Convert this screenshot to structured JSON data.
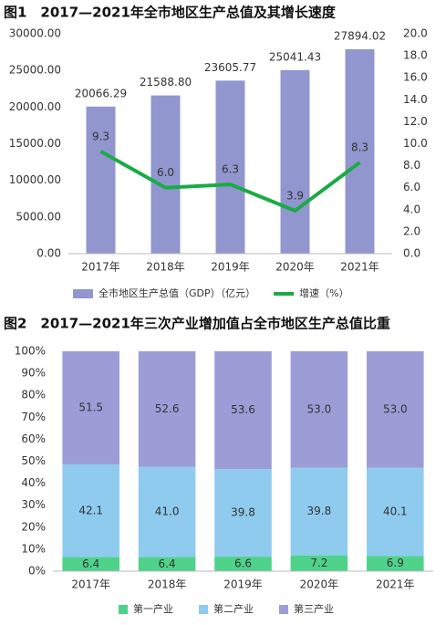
{
  "chart_data": [
    {
      "type": "combo",
      "title": "图1　2017—2021年全市地区生产总值及其增长速度",
      "categories": [
        "2017年",
        "2018年",
        "2019年",
        "2020年",
        "2021年"
      ],
      "series": [
        {
          "name": "全市地区生产总值（GDP）（亿元）",
          "type": "bar",
          "color": "#9196cf",
          "values": [
            20066.29,
            21588.8,
            23605.77,
            25041.43,
            27894.02
          ],
          "value_labels": [
            "20066.29",
            "21588.80",
            "23605.77",
            "25041.43",
            "27894.02"
          ]
        },
        {
          "name": "增速（%）",
          "type": "line",
          "axis": "y2",
          "color": "#1aab45",
          "values": [
            9.3,
            6.0,
            6.3,
            3.9,
            8.3
          ],
          "value_labels": [
            "9.3",
            "6.0",
            "6.3",
            "3.9",
            "8.3"
          ]
        }
      ],
      "ylim": [
        0,
        30000
      ],
      "yticks": [
        {
          "value": 0,
          "label": "0.00"
        },
        {
          "value": 5000,
          "label": "5000.00"
        },
        {
          "value": 10000,
          "label": "10000.00"
        },
        {
          "value": 15000,
          "label": "15000.00"
        },
        {
          "value": 20000,
          "label": "20000.00"
        },
        {
          "value": 25000,
          "label": "25000.00"
        },
        {
          "value": 30000,
          "label": "30000.00"
        }
      ],
      "y2lim": [
        0,
        20
      ],
      "y2ticks": [
        {
          "value": 0,
          "label": "0.0"
        },
        {
          "value": 2,
          "label": "2.0"
        },
        {
          "value": 4,
          "label": "4.0"
        },
        {
          "value": 6,
          "label": "6.0"
        },
        {
          "value": 8,
          "label": "8.0"
        },
        {
          "value": 10,
          "label": "10.0"
        },
        {
          "value": 12,
          "label": "12.0"
        },
        {
          "value": 14,
          "label": "14.0"
        },
        {
          "value": 16,
          "label": "16.0"
        },
        {
          "value": 18,
          "label": "18.0"
        },
        {
          "value": 20,
          "label": "20.0"
        }
      ]
    },
    {
      "type": "stacked_bar",
      "title": "图2　2017—2021年三次产业增加值占全市地区生产总值比重",
      "categories": [
        "2017年",
        "2018年",
        "2019年",
        "2020年",
        "2021年"
      ],
      "series": [
        {
          "name": "第一产业",
          "color": "#4fd28a",
          "values": [
            6.4,
            6.4,
            6.6,
            7.2,
            6.9
          ],
          "value_labels": [
            "6.4",
            "6.4",
            "6.6",
            "7.2",
            "6.9"
          ]
        },
        {
          "name": "第二产业",
          "color": "#8ecbee",
          "values": [
            42.1,
            41.0,
            39.8,
            39.8,
            40.1
          ],
          "value_labels": [
            "42.1",
            "41.0",
            "39.8",
            "39.8",
            "40.1"
          ]
        },
        {
          "name": "第三产业",
          "color": "#9c9dd6",
          "values": [
            51.5,
            52.6,
            53.6,
            53.0,
            53.0
          ],
          "value_labels": [
            "51.5",
            "52.6",
            "53.6",
            "53.0",
            "53.0"
          ]
        }
      ],
      "ylim": [
        0,
        100
      ],
      "yticks": [
        {
          "value": 0,
          "label": "0%"
        },
        {
          "value": 10,
          "label": "10%"
        },
        {
          "value": 20,
          "label": "20%"
        },
        {
          "value": 30,
          "label": "30%"
        },
        {
          "value": 40,
          "label": "40%"
        },
        {
          "value": 50,
          "label": "50%"
        },
        {
          "value": 60,
          "label": "60%"
        },
        {
          "value": 70,
          "label": "70%"
        },
        {
          "value": 80,
          "label": "80%"
        },
        {
          "value": 90,
          "label": "90%"
        },
        {
          "value": 100,
          "label": "100%"
        }
      ]
    }
  ]
}
